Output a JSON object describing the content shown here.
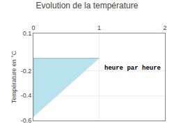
{
  "chart_data": {
    "type": "area",
    "title": "Evolution de la température",
    "y_label": "Température en °C",
    "annotation": "heure par heure",
    "x": [
      0,
      0,
      1
    ],
    "values": [
      -0.57,
      -0.1,
      -0.1
    ],
    "color": "#b8e2ee",
    "xlim": [
      0,
      2
    ],
    "ylim": [
      -0.6,
      0.1
    ],
    "xticks": [
      0,
      1,
      2
    ],
    "yticks": [
      -0.6,
      -0.4,
      -0.2,
      0.1
    ],
    "grid": true
  }
}
